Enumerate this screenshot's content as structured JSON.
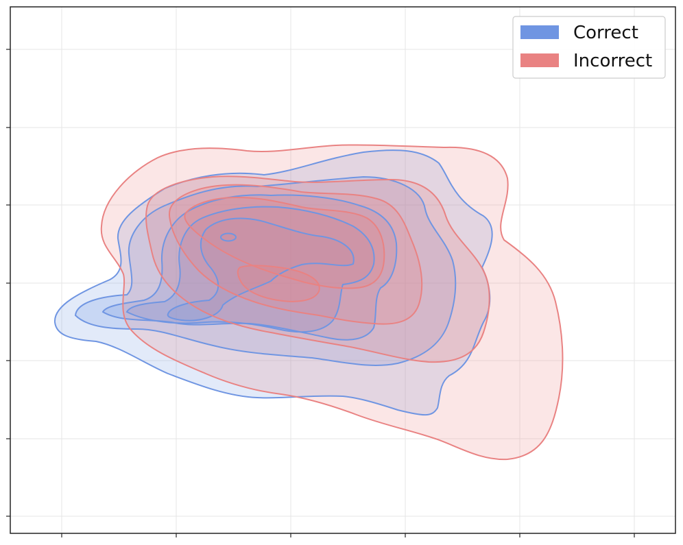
{
  "chart_data": {
    "type": "kde-contour",
    "title": "",
    "xlabel": "",
    "ylabel": "",
    "grid": true,
    "legend_position": "top-right",
    "colors": {
      "correct": "#6f95e2",
      "incorrect": "#e98282"
    },
    "legend": [
      {
        "label": "Correct",
        "key": "correct"
      },
      {
        "label": "Incorrect",
        "key": "incorrect"
      }
    ],
    "x_tick_labels": [],
    "y_tick_labels": [],
    "series": [
      {
        "name": "Correct",
        "key": "correct",
        "contour_levels": 5
      },
      {
        "name": "Incorrect",
        "key": "incorrect",
        "contour_levels": 5
      }
    ]
  }
}
